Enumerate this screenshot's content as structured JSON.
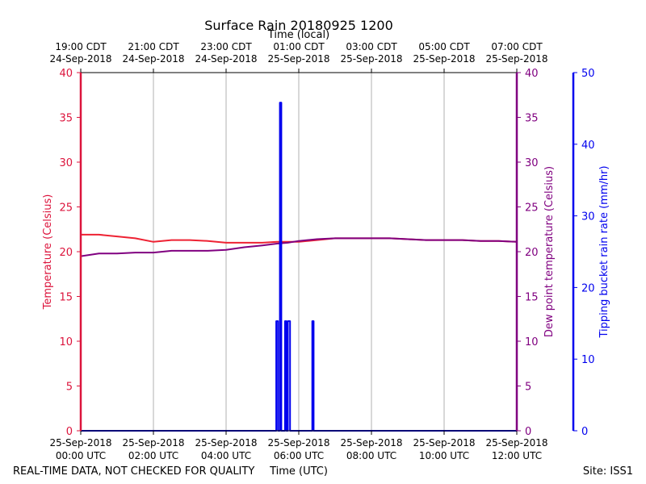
{
  "chart_data": {
    "type": "line",
    "title": "Surface Rain 20180925 1200",
    "top_axis_label": "Time (local)",
    "xlabel": "Time (UTC)",
    "x_unit": "hours since 25-Sep-2018 00:00 UTC",
    "xlim": [
      0,
      12
    ],
    "x_ticks_bottom": [
      {
        "x": 0,
        "line1": "25-Sep-2018",
        "line2": "00:00 UTC"
      },
      {
        "x": 2,
        "line1": "25-Sep-2018",
        "line2": "02:00 UTC"
      },
      {
        "x": 4,
        "line1": "25-Sep-2018",
        "line2": "04:00 UTC"
      },
      {
        "x": 6,
        "line1": "25-Sep-2018",
        "line2": "06:00 UTC"
      },
      {
        "x": 8,
        "line1": "25-Sep-2018",
        "line2": "08:00 UTC"
      },
      {
        "x": 10,
        "line1": "25-Sep-2018",
        "line2": "10:00 UTC"
      },
      {
        "x": 12,
        "line1": "25-Sep-2018",
        "line2": "12:00 UTC"
      }
    ],
    "x_ticks_top": [
      {
        "x": 0,
        "line1": "19:00 CDT",
        "line2": "24-Sep-2018"
      },
      {
        "x": 2,
        "line1": "21:00 CDT",
        "line2": "24-Sep-2018"
      },
      {
        "x": 4,
        "line1": "23:00 CDT",
        "line2": "24-Sep-2018"
      },
      {
        "x": 6,
        "line1": "01:00 CDT",
        "line2": "25-Sep-2018"
      },
      {
        "x": 8,
        "line1": "03:00 CDT",
        "line2": "25-Sep-2018"
      },
      {
        "x": 10,
        "line1": "05:00 CDT",
        "line2": "25-Sep-2018"
      },
      {
        "x": 12,
        "line1": "07:00 CDT",
        "line2": "25-Sep-2018"
      }
    ],
    "y_left": {
      "label": "Temperature (Celsius)",
      "lim": [
        0,
        40
      ],
      "ticks": [
        0,
        5,
        10,
        15,
        20,
        25,
        30,
        35,
        40
      ],
      "color": "#dc143c"
    },
    "y_right1": {
      "label": "Dew point temperature (Celsius)",
      "lim": [
        0,
        40
      ],
      "ticks": [
        0,
        5,
        10,
        15,
        20,
        25,
        30,
        35,
        40
      ],
      "color": "#800080"
    },
    "y_right2": {
      "label": "Tipping bucket rain rate (mm/hr)",
      "lim": [
        0,
        50
      ],
      "ticks": [
        0,
        10,
        20,
        30,
        40,
        50
      ],
      "color": "#0000ee"
    },
    "grid": "vertical",
    "series": [
      {
        "name": "Temperature",
        "axis": "left",
        "color": "#ee2233",
        "x": [
          0,
          0.5,
          1,
          1.5,
          2,
          2.5,
          3,
          3.5,
          4,
          4.5,
          5,
          5.4,
          5.7,
          6,
          6.5,
          7,
          7.5,
          8,
          8.5,
          9,
          9.5,
          10,
          10.5,
          11,
          11.5,
          12
        ],
        "y": [
          21.9,
          21.9,
          21.7,
          21.5,
          21.1,
          21.3,
          21.3,
          21.2,
          21.0,
          21.0,
          21.0,
          21.1,
          21.1,
          21.1,
          21.3,
          21.5,
          21.5,
          21.5,
          21.5,
          21.4,
          21.3,
          21.3,
          21.3,
          21.2,
          21.2,
          21.1
        ]
      },
      {
        "name": "Dew point temperature",
        "axis": "right1",
        "color": "#800080",
        "x": [
          0,
          0.5,
          1,
          1.5,
          2,
          2.5,
          3,
          3.5,
          4,
          4.5,
          5,
          5.4,
          5.7,
          6,
          6.5,
          7,
          7.5,
          8,
          8.5,
          9,
          9.5,
          10,
          10.5,
          11,
          11.5,
          12
        ],
        "y": [
          19.5,
          19.8,
          19.8,
          19.9,
          19.9,
          20.1,
          20.1,
          20.1,
          20.2,
          20.5,
          20.7,
          20.9,
          21.0,
          21.2,
          21.4,
          21.5,
          21.5,
          21.5,
          21.5,
          21.4,
          21.3,
          21.3,
          21.3,
          21.2,
          21.2,
          21.1
        ]
      },
      {
        "name": "Tipping bucket rain rate",
        "axis": "right2",
        "color": "#0000ee",
        "x": [
          0,
          5.38,
          5.38,
          5.43,
          5.43,
          5.48,
          5.48,
          5.52,
          5.52,
          5.62,
          5.62,
          5.66,
          5.66,
          5.7,
          5.7,
          5.76,
          5.76,
          6.37,
          6.37,
          6.41,
          6.41,
          12
        ],
        "y": [
          0,
          0,
          15.3,
          15.3,
          0,
          0,
          45.8,
          45.8,
          0,
          0,
          15.3,
          15.3,
          0,
          0,
          15.3,
          15.3,
          0,
          0,
          15.3,
          15.3,
          0,
          0
        ]
      }
    ]
  },
  "footer": {
    "left_note": "REAL-TIME DATA, NOT CHECKED FOR QUALITY",
    "site": "Site: ISS1"
  }
}
